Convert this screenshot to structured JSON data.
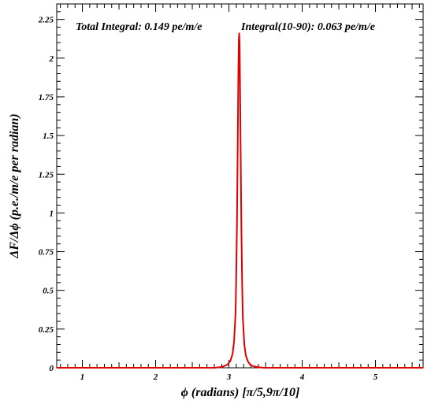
{
  "chart_data": {
    "type": "line",
    "title": "",
    "xlabel": "ϕ (radians) [π/5,9π/10]",
    "ylabel": "ΔF/Δϕ (p.e./m/e per radian)",
    "xlim": [
      0.65,
      5.65
    ],
    "ylim": [
      0,
      2.35
    ],
    "x_ticks": [
      1,
      2,
      3,
      4,
      5
    ],
    "x_tick_labels": [
      "1",
      "2",
      "3",
      "4",
      "5"
    ],
    "y_ticks": [
      0,
      0.25,
      0.5,
      0.75,
      1,
      1.25,
      1.5,
      1.75,
      2,
      2.25
    ],
    "y_tick_labels": [
      "0",
      "0.25",
      "0.5",
      "0.75",
      "1",
      "1.25",
      "1.5",
      "1.75",
      "2",
      "2.25"
    ],
    "grid": false,
    "legend": false,
    "annotations": [
      {
        "text": "Total Integral: 0.149 pe/m/e",
        "position": "top-left"
      },
      {
        "text": "Integral(10-90): 0.063 pe/m/e",
        "position": "top-right"
      }
    ],
    "series": [
      {
        "color": "#e00000",
        "x": [
          0.65,
          2.8,
          2.9,
          2.98,
          3.02,
          3.05,
          3.07,
          3.09,
          3.1,
          3.11,
          3.12,
          3.13,
          3.135,
          3.14,
          3.145,
          3.15,
          3.16,
          3.17,
          3.18,
          3.19,
          3.21,
          3.23,
          3.26,
          3.3,
          3.38,
          3.48,
          5.65
        ],
        "y": [
          0.0,
          0.0,
          0.005,
          0.02,
          0.045,
          0.09,
          0.17,
          0.35,
          0.6,
          0.95,
          1.45,
          1.95,
          2.12,
          2.16,
          2.1,
          1.9,
          1.4,
          0.9,
          0.55,
          0.32,
          0.15,
          0.08,
          0.04,
          0.015,
          0.005,
          0.0,
          0.0
        ]
      }
    ]
  }
}
